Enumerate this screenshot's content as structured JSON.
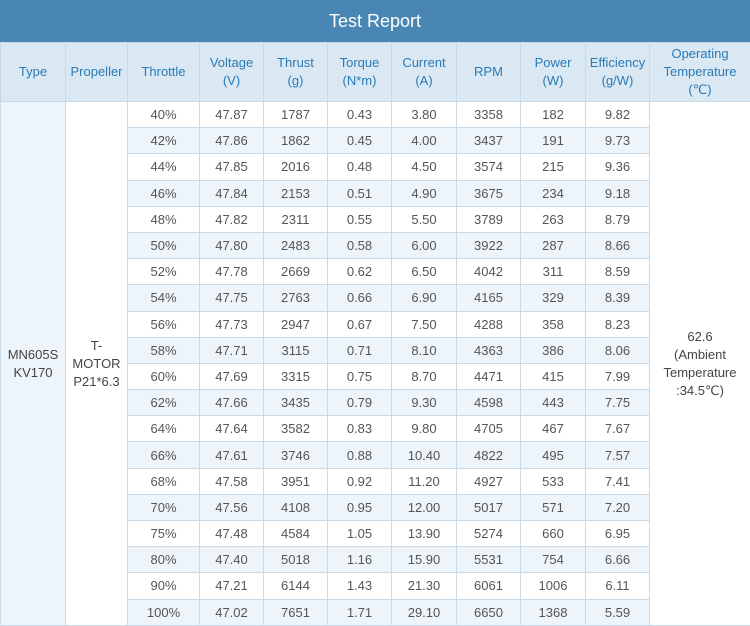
{
  "title": "Test Report",
  "headers": [
    {
      "main": "Type",
      "sub": ""
    },
    {
      "main": "Propeller",
      "sub": ""
    },
    {
      "main": "Throttle",
      "sub": ""
    },
    {
      "main": "Voltage",
      "sub": "(V)"
    },
    {
      "main": "Thrust",
      "sub": "(g)"
    },
    {
      "main": "Torque",
      "sub": "(N*m)"
    },
    {
      "main": "Current",
      "sub": "(A)"
    },
    {
      "main": "RPM",
      "sub": ""
    },
    {
      "main": "Power",
      "sub": "(W)"
    },
    {
      "main": "Efficiency",
      "sub": "(g/W)"
    },
    {
      "main": "Operating",
      "sub": "Temperature",
      "sub2": "(℃)"
    }
  ],
  "type_lines": [
    "MN605S",
    "KV170"
  ],
  "propeller_lines": [
    "T-",
    "MOTOR",
    "P21*6.3"
  ],
  "temperature_lines": [
    "62.6",
    "(Ambient",
    "Temperature",
    ":34.5℃)"
  ],
  "rows": [
    [
      "40%",
      "47.87",
      "1787",
      "0.43",
      "3.80",
      "3358",
      "182",
      "9.82"
    ],
    [
      "42%",
      "47.86",
      "1862",
      "0.45",
      "4.00",
      "3437",
      "191",
      "9.73"
    ],
    [
      "44%",
      "47.85",
      "2016",
      "0.48",
      "4.50",
      "3574",
      "215",
      "9.36"
    ],
    [
      "46%",
      "47.84",
      "2153",
      "0.51",
      "4.90",
      "3675",
      "234",
      "9.18"
    ],
    [
      "48%",
      "47.82",
      "2311",
      "0.55",
      "5.50",
      "3789",
      "263",
      "8.79"
    ],
    [
      "50%",
      "47.80",
      "2483",
      "0.58",
      "6.00",
      "3922",
      "287",
      "8.66"
    ],
    [
      "52%",
      "47.78",
      "2669",
      "0.62",
      "6.50",
      "4042",
      "311",
      "8.59"
    ],
    [
      "54%",
      "47.75",
      "2763",
      "0.66",
      "6.90",
      "4165",
      "329",
      "8.39"
    ],
    [
      "56%",
      "47.73",
      "2947",
      "0.67",
      "7.50",
      "4288",
      "358",
      "8.23"
    ],
    [
      "58%",
      "47.71",
      "3115",
      "0.71",
      "8.10",
      "4363",
      "386",
      "8.06"
    ],
    [
      "60%",
      "47.69",
      "3315",
      "0.75",
      "8.70",
      "4471",
      "415",
      "7.99"
    ],
    [
      "62%",
      "47.66",
      "3435",
      "0.79",
      "9.30",
      "4598",
      "443",
      "7.75"
    ],
    [
      "64%",
      "47.64",
      "3582",
      "0.83",
      "9.80",
      "4705",
      "467",
      "7.67"
    ],
    [
      "66%",
      "47.61",
      "3746",
      "0.88",
      "10.40",
      "4822",
      "495",
      "7.57"
    ],
    [
      "68%",
      "47.58",
      "3951",
      "0.92",
      "11.20",
      "4927",
      "533",
      "7.41"
    ],
    [
      "70%",
      "47.56",
      "4108",
      "0.95",
      "12.00",
      "5017",
      "571",
      "7.20"
    ],
    [
      "75%",
      "47.48",
      "4584",
      "1.05",
      "13.90",
      "5274",
      "660",
      "6.95"
    ],
    [
      "80%",
      "47.40",
      "5018",
      "1.16",
      "15.90",
      "5531",
      "754",
      "6.66"
    ],
    [
      "90%",
      "47.21",
      "6144",
      "1.43",
      "21.30",
      "6061",
      "1006",
      "6.11"
    ],
    [
      "100%",
      "47.02",
      "7651",
      "1.71",
      "29.10",
      "6650",
      "1368",
      "5.59"
    ]
  ]
}
